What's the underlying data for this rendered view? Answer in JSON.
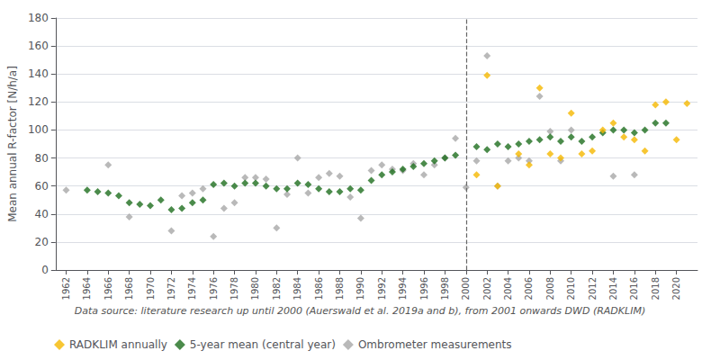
{
  "chart_data": {
    "type": "scatter",
    "ylabel": "Mean annual R-factor [N/h/a]",
    "caption": "Data source: literature research up until 2000 (Auerswald et al. 2019a and b), from 2001 onwards DWD (RADKLIM)",
    "xlim": [
      1961,
      2022
    ],
    "xticks": [
      1962,
      1964,
      1966,
      1968,
      1970,
      1972,
      1974,
      1976,
      1978,
      1980,
      1982,
      1984,
      1986,
      1988,
      1990,
      1992,
      1994,
      1996,
      1998,
      2000,
      2002,
      2004,
      2006,
      2008,
      2010,
      2012,
      2014,
      2016,
      2018,
      2020
    ],
    "ylim": [
      0,
      180
    ],
    "yticks": [
      0,
      20,
      40,
      60,
      80,
      100,
      120,
      140,
      160,
      180
    ],
    "grid": "y",
    "legend": "bottom left",
    "marker": "diamond",
    "vline": {
      "x": 2000,
      "line_style": "dashed"
    },
    "series": [
      {
        "name": "RADKLIM annually",
        "color": "#f5b800",
        "x": [
          2001,
          2002,
          2003,
          2005,
          2006,
          2007,
          2008,
          2009,
          2010,
          2011,
          2012,
          2013,
          2014,
          2015,
          2016,
          2017,
          2018,
          2019,
          2020,
          2021
        ],
        "values": [
          68,
          139,
          60,
          83,
          75,
          130,
          83,
          80,
          112,
          83,
          85,
          100,
          105,
          95,
          93,
          85,
          118,
          120,
          93,
          119
        ]
      },
      {
        "name": "5-year mean (central year)",
        "color": "#1e6e1e",
        "x": [
          1964,
          1965,
          1966,
          1967,
          1968,
          1969,
          1970,
          1971,
          1972,
          1973,
          1974,
          1975,
          1976,
          1977,
          1978,
          1979,
          1980,
          1981,
          1982,
          1983,
          1984,
          1985,
          1986,
          1987,
          1988,
          1989,
          1990,
          1991,
          1992,
          1993,
          1994,
          1995,
          1996,
          1997,
          1998,
          1999,
          2001,
          2002,
          2003,
          2004,
          2005,
          2006,
          2007,
          2008,
          2009,
          2010,
          2011,
          2012,
          2013,
          2014,
          2015,
          2016,
          2017,
          2018,
          2019
        ],
        "values": [
          57,
          56,
          55,
          53,
          48,
          47,
          46,
          50,
          43,
          44,
          48,
          50,
          61,
          62,
          60,
          62,
          62,
          60,
          58,
          58,
          62,
          61,
          58,
          56,
          56,
          58,
          57,
          64,
          68,
          70,
          72,
          74,
          76,
          78,
          80,
          82,
          88,
          86,
          90,
          88,
          90,
          92,
          93,
          95,
          92,
          95,
          92,
          95,
          98,
          100,
          100,
          98,
          100,
          105,
          105
        ]
      },
      {
        "name": "Ombrometer measurements",
        "color": "#a8a8a8",
        "x": [
          1962,
          1966,
          1968,
          1972,
          1973,
          1974,
          1975,
          1976,
          1977,
          1978,
          1979,
          1980,
          1981,
          1982,
          1983,
          1984,
          1985,
          1986,
          1987,
          1988,
          1989,
          1990,
          1991,
          1992,
          1993,
          1994,
          1995,
          1996,
          1997,
          1998,
          1999,
          2000,
          2001,
          2002,
          2003,
          2004,
          2005,
          2006,
          2007,
          2008,
          2009,
          2010,
          2014,
          2016
        ],
        "values": [
          57,
          75,
          38,
          28,
          53,
          55,
          58,
          24,
          44,
          48,
          66,
          66,
          65,
          30,
          54,
          80,
          55,
          66,
          69,
          67,
          52,
          37,
          71,
          75,
          72,
          71,
          76,
          68,
          75,
          80,
          94,
          59,
          78,
          153,
          60,
          78,
          80,
          78,
          124,
          99,
          78,
          100,
          67,
          68
        ]
      }
    ]
  }
}
